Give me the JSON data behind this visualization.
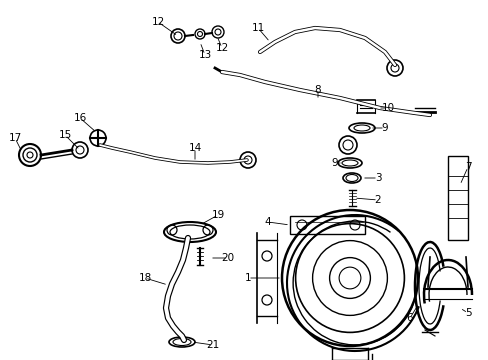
{
  "background_color": "#ffffff",
  "fig_width": 4.89,
  "fig_height": 3.6,
  "dpi": 100,
  "line_color": "#000000",
  "label_fontsize": 7.5
}
